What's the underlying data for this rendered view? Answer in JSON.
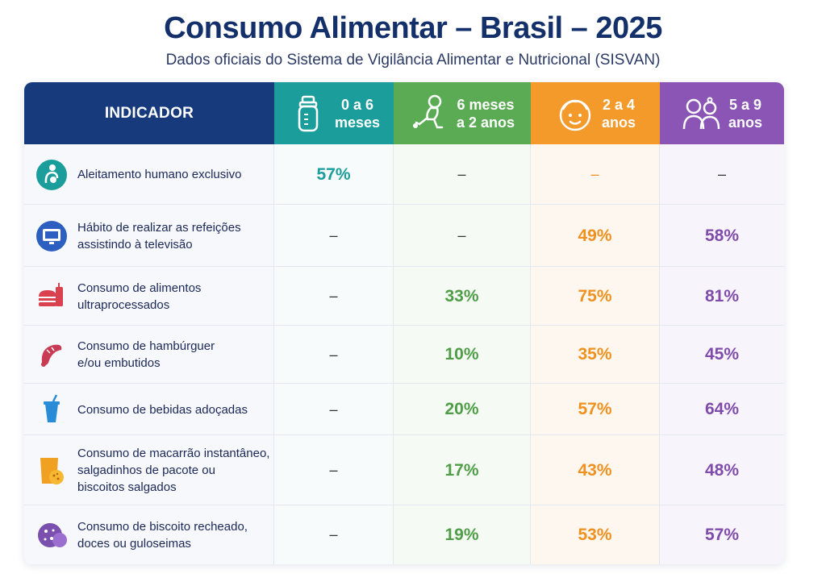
{
  "title": "Consumo Alimentar – Brasil – 2025",
  "subtitle": "Dados oficiais do Sistema de Vigilância Alimentar e Nutricional (SISVAN)",
  "colors": {
    "indicator_header": "#173a7c",
    "age_0_6m": "#1a9d9b",
    "age_6m_2y": "#5bab54",
    "age_2_4y": "#f39a2a",
    "age_5_9y": "#8a55b4"
  },
  "chart_data": {
    "type": "table",
    "header_indicator": "INDICADOR",
    "columns": [
      {
        "label": "0 a 6\nmeses",
        "icon": "baby-bottle-icon",
        "color": "#1a9d9b"
      },
      {
        "label": "6 meses\na 2 anos",
        "icon": "crawling-baby-icon",
        "color": "#5bab54"
      },
      {
        "label": "2 a 4\nanos",
        "icon": "child-face-icon",
        "color": "#f39a2a"
      },
      {
        "label": "5 a 9\nanos",
        "icon": "two-children-icon",
        "color": "#8a55b4"
      }
    ],
    "rows": [
      {
        "indicator": "Aleitamento humano exclusivo",
        "icon": "breastfeeding-icon",
        "values": [
          "57%",
          "–",
          "–",
          "–"
        ]
      },
      {
        "indicator": "Hábito de realizar as refeições\nassistindo à televisão",
        "icon": "television-icon",
        "values": [
          "–",
          "–",
          "49%",
          "58%"
        ]
      },
      {
        "indicator": "Consumo de alimentos\nultraprocessados",
        "icon": "fast-food-icon",
        "values": [
          "–",
          "33%",
          "75%",
          "81%"
        ]
      },
      {
        "indicator": "Consumo de hambúrguer\ne/ou embutidos",
        "icon": "sausage-icon",
        "values": [
          "–",
          "10%",
          "35%",
          "45%"
        ]
      },
      {
        "indicator": "Consumo de bebidas adoçadas",
        "icon": "soda-cup-icon",
        "values": [
          "–",
          "20%",
          "57%",
          "64%"
        ]
      },
      {
        "indicator": "Consumo de macarrão instantâneo,\nsalgadinhos de pacote ou\nbiscoitos salgados",
        "icon": "snack-bag-icon",
        "values": [
          "–",
          "17%",
          "43%",
          "48%"
        ]
      },
      {
        "indicator": "Consumo de biscoito recheado,\ndoces ou guloseimas",
        "icon": "cookie-icon",
        "values": [
          "–",
          "19%",
          "53%",
          "57%"
        ]
      }
    ]
  }
}
